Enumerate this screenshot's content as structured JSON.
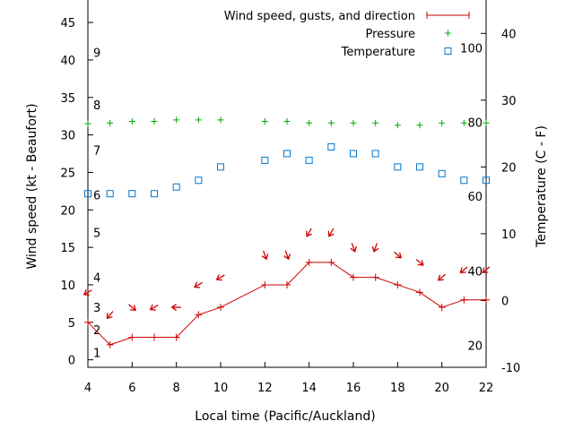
{
  "chart_data": {
    "type": "line",
    "xlabel": "Local time (Pacific/Auckland)",
    "ylabel_left": "Wind speed (kt - Beaufort)",
    "ylabel_right": "Temperature (C - F)",
    "xlim": [
      4,
      22
    ],
    "x_ticks": [
      4,
      6,
      8,
      10,
      12,
      14,
      16,
      18,
      20,
      22
    ],
    "ylim_left": [
      -1,
      48
    ],
    "y_left_ticks": [
      0,
      5,
      10,
      15,
      20,
      25,
      30,
      35,
      40,
      45
    ],
    "ylim_right": [
      -10,
      45
    ],
    "y_right_ticks": [
      -10,
      0,
      10,
      20,
      30,
      40
    ],
    "beaufort_labels": [
      {
        "label": "1",
        "kt": 1
      },
      {
        "label": "2",
        "kt": 4
      },
      {
        "label": "3",
        "kt": 7
      },
      {
        "label": "4",
        "kt": 11
      },
      {
        "label": "5",
        "kt": 17
      },
      {
        "label": "6",
        "kt": 22
      },
      {
        "label": "7",
        "kt": 28
      },
      {
        "label": "8",
        "kt": 34
      },
      {
        "label": "9",
        "kt": 41
      }
    ],
    "fahrenheit_labels": [
      {
        "label": "20",
        "c": -6.7
      },
      {
        "label": "40",
        "c": 4.4
      },
      {
        "label": "60",
        "c": 15.6
      },
      {
        "label": "80",
        "c": 26.7
      },
      {
        "label": "100",
        "c": 37.8
      }
    ],
    "legend_position": "top-right",
    "series": [
      {
        "name": "Wind speed, gusts, and direction",
        "color": "#cc0000",
        "axis": "left",
        "x": [
          4,
          5,
          6,
          7,
          8,
          9,
          10,
          12,
          13,
          14,
          15,
          16,
          17,
          18,
          19,
          20,
          21,
          22
        ],
        "values": [
          5,
          2,
          3,
          3,
          3,
          6,
          7,
          10,
          10,
          13,
          13,
          11,
          11,
          10,
          9,
          7,
          8,
          8
        ],
        "gusts": [
          9,
          6,
          7,
          7,
          7,
          10,
          11,
          14,
          14,
          17,
          17,
          15,
          15,
          14,
          13,
          11,
          12,
          12
        ],
        "direction_deg": [
          60,
          40,
          310,
          60,
          90,
          60,
          60,
          340,
          340,
          30,
          30,
          340,
          20,
          310,
          310,
          50,
          50,
          50
        ]
      },
      {
        "name": "Pressure",
        "color": "#00aa00",
        "marker": "plus",
        "axis": "left",
        "x": [
          4,
          5,
          6,
          7,
          8,
          9,
          10,
          12,
          13,
          14,
          15,
          16,
          17,
          18,
          19,
          20,
          21,
          22
        ],
        "values": [
          31.5,
          31.6,
          31.8,
          31.8,
          32.0,
          32.0,
          32.0,
          31.8,
          31.8,
          31.6,
          31.6,
          31.6,
          31.6,
          31.3,
          31.3,
          31.6,
          31.6,
          31.6
        ]
      },
      {
        "name": "Temperature",
        "color": "#0077cc",
        "marker": "square",
        "axis": "right",
        "x": [
          4,
          5,
          6,
          7,
          8,
          9,
          10,
          12,
          13,
          14,
          15,
          16,
          17,
          18,
          19,
          20,
          21,
          22
        ],
        "values": [
          16,
          16,
          16,
          16,
          17,
          18,
          20,
          21,
          22,
          21,
          23,
          22,
          22,
          20,
          20,
          19,
          18,
          18
        ]
      }
    ]
  }
}
